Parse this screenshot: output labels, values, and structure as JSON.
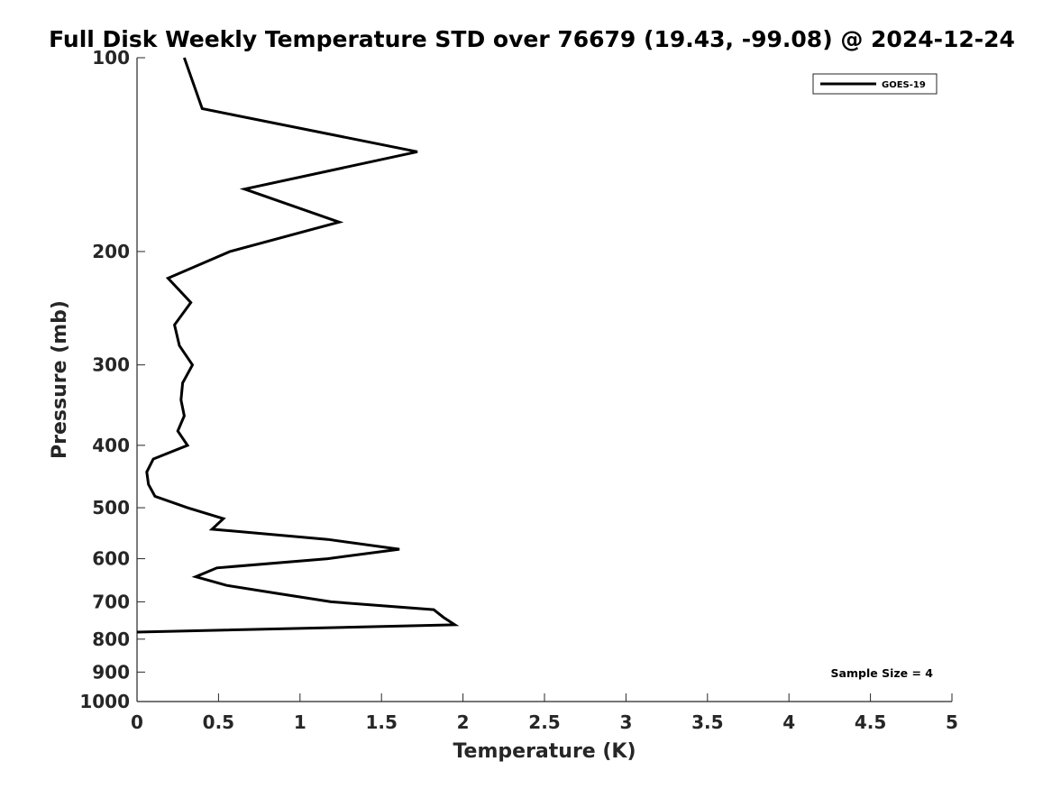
{
  "chart_data": {
    "type": "line",
    "title": "Full Disk Weekly Temperature STD over 76679 (19.43, -99.08) @ 2024-12-24",
    "xlabel": "Temperature (K)",
    "ylabel": "Pressure (mb)",
    "xlim": [
      0,
      5
    ],
    "ylim": [
      100,
      1000
    ],
    "yscale": "log",
    "y_reversed": true,
    "xticks": [
      0,
      0.5,
      1,
      1.5,
      2,
      2.5,
      3,
      3.5,
      4,
      4.5,
      5
    ],
    "xtick_labels": [
      "0",
      "0.5",
      "1",
      "1.5",
      "2",
      "2.5",
      "3",
      "3.5",
      "4",
      "4.5",
      "5"
    ],
    "yticks": [
      100,
      200,
      300,
      400,
      500,
      600,
      700,
      800,
      900,
      1000
    ],
    "ytick_labels": [
      "100",
      "200",
      "300",
      "400",
      "500",
      "600",
      "700",
      "800",
      "900",
      "1000"
    ],
    "grid": false,
    "legend_position": "top-right",
    "series": [
      {
        "name": "GOES-19",
        "color": "#000000",
        "points": [
          {
            "x": 0.29,
            "y": 100
          },
          {
            "x": 0.4,
            "y": 120
          },
          {
            "x": 1.72,
            "y": 140
          },
          {
            "x": 0.66,
            "y": 160
          },
          {
            "x": 1.24,
            "y": 180
          },
          {
            "x": 0.57,
            "y": 200
          },
          {
            "x": 0.19,
            "y": 220
          },
          {
            "x": 0.33,
            "y": 240
          },
          {
            "x": 0.23,
            "y": 260
          },
          {
            "x": 0.26,
            "y": 280
          },
          {
            "x": 0.34,
            "y": 300
          },
          {
            "x": 0.28,
            "y": 320
          },
          {
            "x": 0.27,
            "y": 340
          },
          {
            "x": 0.29,
            "y": 360
          },
          {
            "x": 0.25,
            "y": 380
          },
          {
            "x": 0.31,
            "y": 400
          },
          {
            "x": 0.1,
            "y": 420
          },
          {
            "x": 0.06,
            "y": 440
          },
          {
            "x": 0.07,
            "y": 460
          },
          {
            "x": 0.11,
            "y": 480
          },
          {
            "x": 0.31,
            "y": 500
          },
          {
            "x": 0.53,
            "y": 520
          },
          {
            "x": 0.46,
            "y": 540
          },
          {
            "x": 1.17,
            "y": 560
          },
          {
            "x": 1.61,
            "y": 580
          },
          {
            "x": 1.17,
            "y": 600
          },
          {
            "x": 0.49,
            "y": 620
          },
          {
            "x": 0.36,
            "y": 640
          },
          {
            "x": 0.55,
            "y": 660
          },
          {
            "x": 0.87,
            "y": 680
          },
          {
            "x": 1.19,
            "y": 700
          },
          {
            "x": 1.82,
            "y": 720
          },
          {
            "x": 1.88,
            "y": 740
          },
          {
            "x": 1.95,
            "y": 760
          },
          {
            "x": 0.0,
            "y": 780
          }
        ]
      }
    ],
    "annotations": [
      {
        "text": "Sample Size = 4",
        "position": "bottom-right"
      }
    ]
  }
}
